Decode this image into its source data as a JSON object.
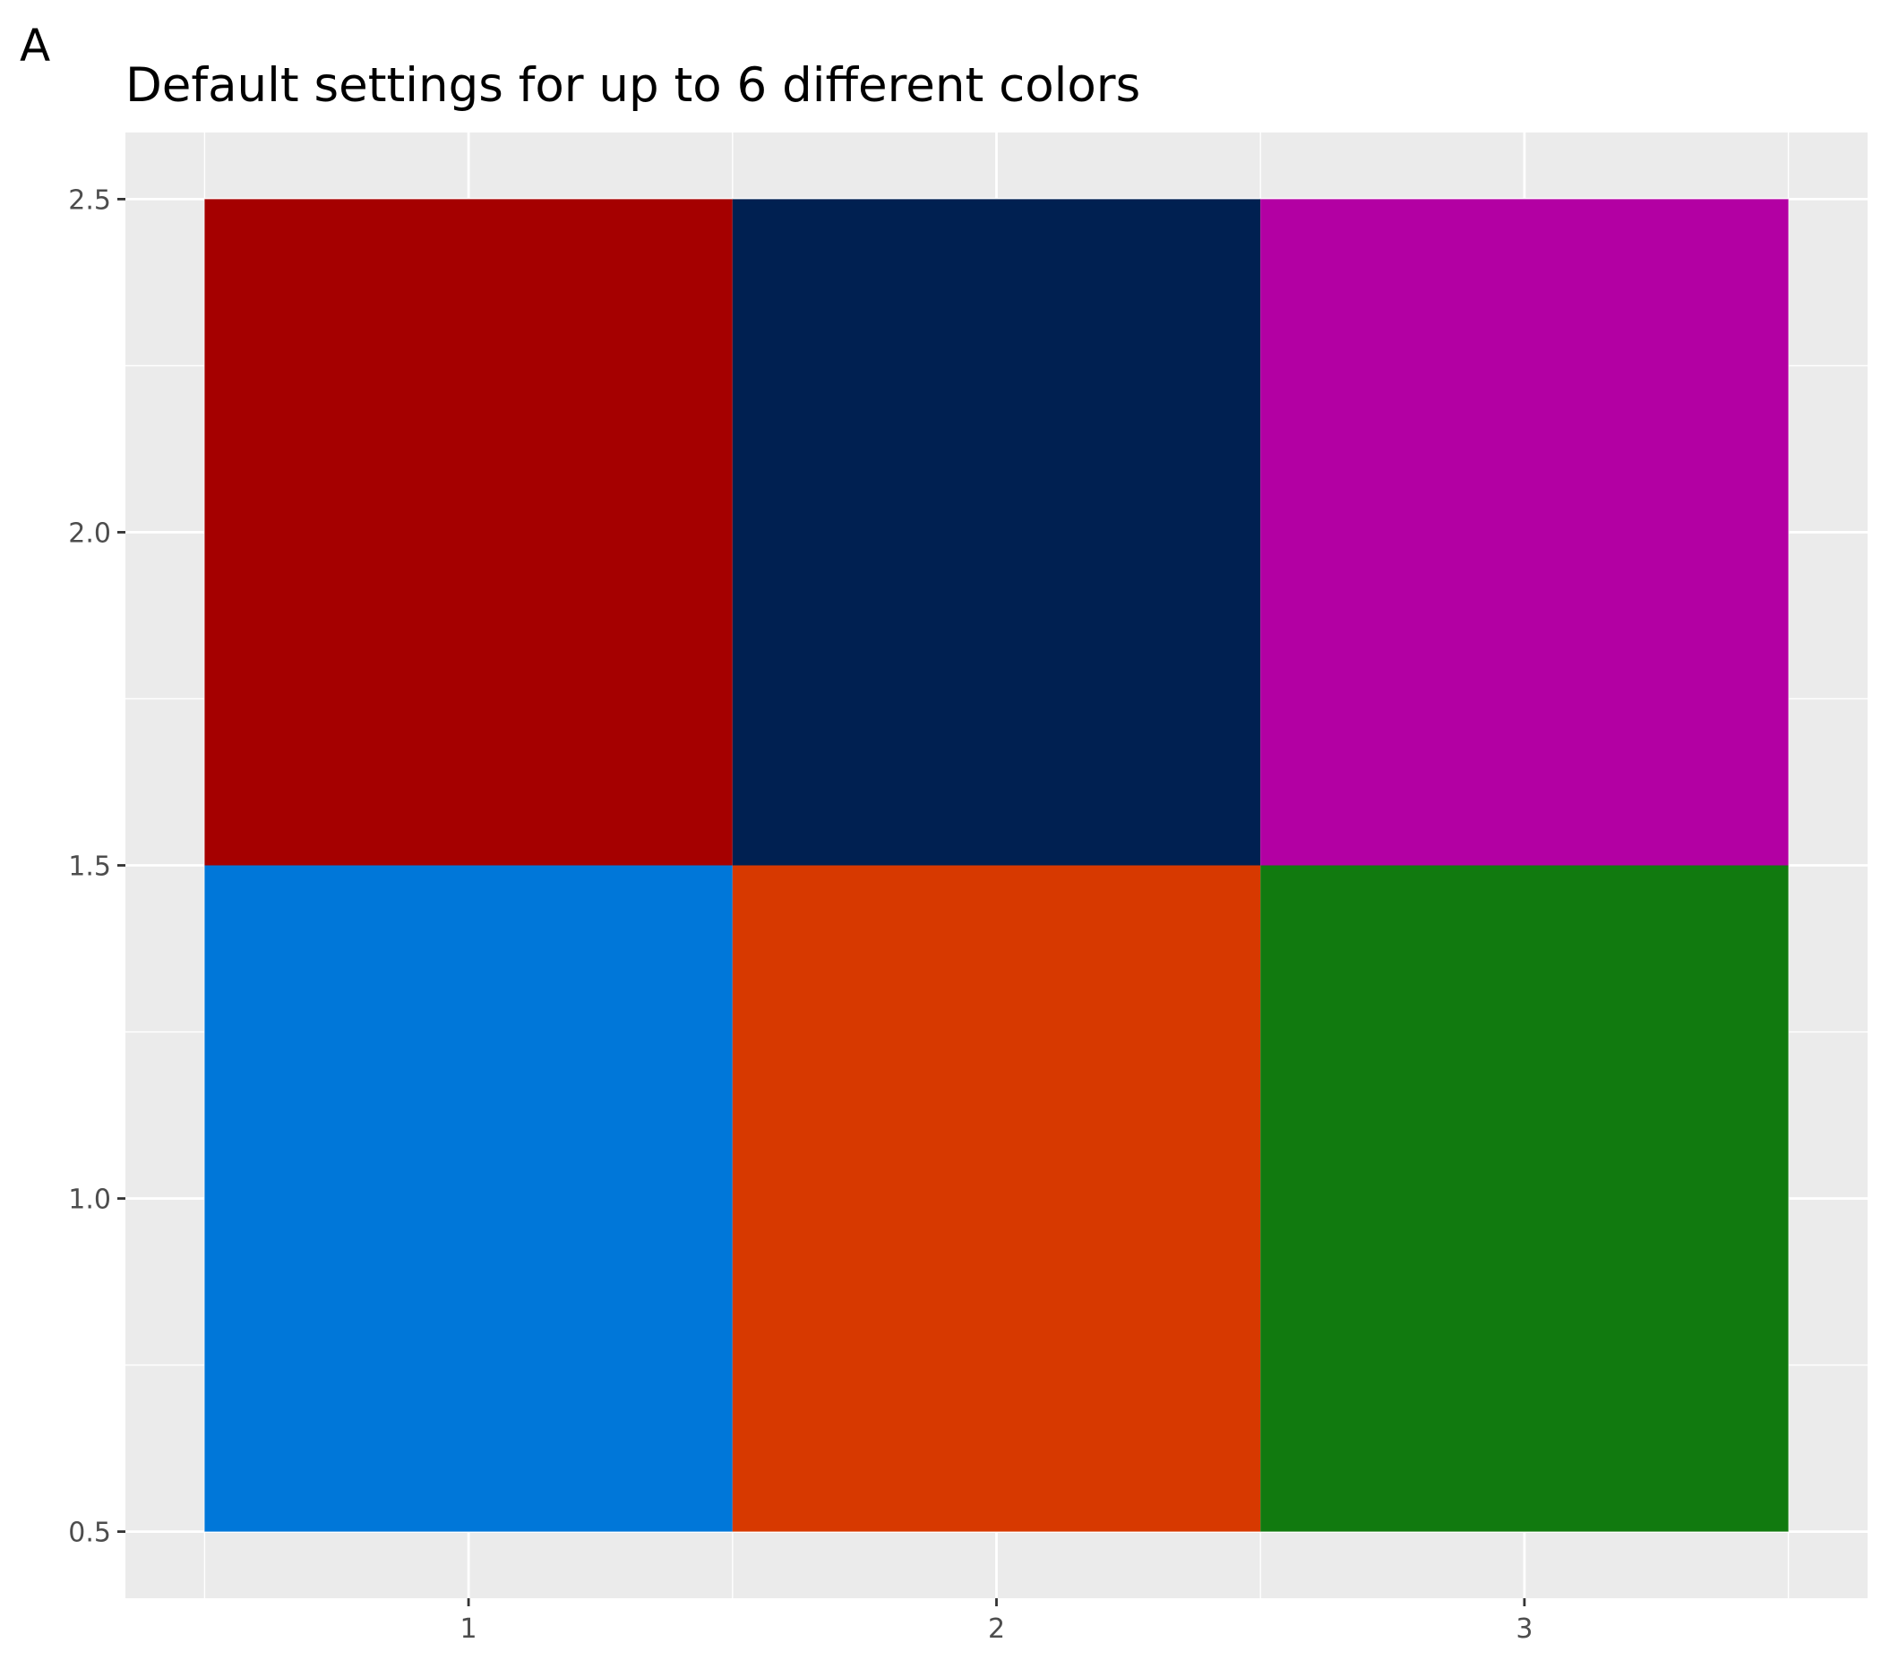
{
  "panel_tag": "A",
  "chart_data": {
    "type": "heatmap",
    "title": "Default settings for up to 6 different colors",
    "xlabel": "",
    "ylabel": "",
    "x_ticks": [
      "1",
      "2",
      "3"
    ],
    "y_ticks": [
      "0.5",
      "1.0",
      "1.5",
      "2.0",
      "2.5"
    ],
    "xlim": [
      0.35,
      3.65
    ],
    "ylim": [
      0.4,
      2.6
    ],
    "grid": true,
    "legend": "none",
    "tiles": [
      {
        "x": 1,
        "y": 1,
        "fill": "#0077D9"
      },
      {
        "x": 2,
        "y": 1,
        "fill": "#D73900"
      },
      {
        "x": 3,
        "y": 1,
        "fill": "#117A0F"
      },
      {
        "x": 1,
        "y": 2,
        "fill": "#A50000"
      },
      {
        "x": 2,
        "y": 2,
        "fill": "#002051"
      },
      {
        "x": 3,
        "y": 2,
        "fill": "#B300A3"
      }
    ],
    "panel_background": "#EBEBEB",
    "grid_color": "#FFFFFF"
  }
}
